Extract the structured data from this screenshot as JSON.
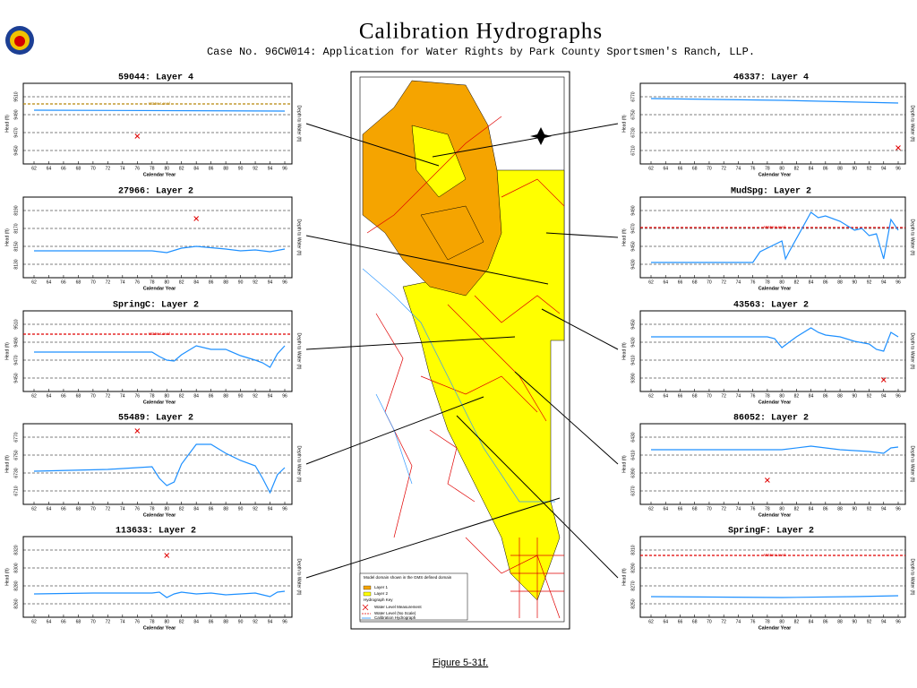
{
  "title": "Calibration Hydrographs",
  "subtitle": "Case No. 96CW014: Application for Water Rights by Park County Sportsmen's Ranch, LLP.",
  "caption": "Figure 5-31f.",
  "map": {
    "legend": [
      "Model domain shown in the GMS defined domain",
      "Layer 1",
      "Layer 2",
      "Hydrograph Key",
      "Water Level Measurement",
      "Water Level (No Scale)",
      "Calibration Hydrograph"
    ]
  },
  "chart_data": [
    {
      "type": "line",
      "title": "59044: Layer 4",
      "x_label": "Calendar Year",
      "y_label": "Head (ft)",
      "y2_label": "Depth to Water (ft)",
      "xlim": [
        62,
        96
      ],
      "xticks": [
        62,
        64,
        66,
        68,
        70,
        72,
        74,
        76,
        78,
        80,
        82,
        84,
        86,
        88,
        90,
        92,
        94,
        96
      ],
      "ylim": [
        9440,
        9520
      ],
      "yticks": [
        9450,
        9470,
        9490,
        9510
      ],
      "series": [
        {
          "color": "#1e90ff",
          "x": [
            62,
            96
          ],
          "values": [
            9495,
            9494
          ]
        }
      ],
      "measurements": {
        "color": "#e00000",
        "x": [
          76
        ],
        "values": [
          9466
        ]
      },
      "water_level": {
        "label": "Water Level",
        "value": 9502,
        "color": "#b8860b"
      }
    },
    {
      "type": "line",
      "title": "27966: Layer 2",
      "x_label": "Calendar Year",
      "y_label": "Head (ft)",
      "y2_label": "Depth to Water (ft)",
      "xlim": [
        62,
        96
      ],
      "xticks": [
        62,
        64,
        66,
        68,
        70,
        72,
        74,
        76,
        78,
        80,
        82,
        84,
        86,
        88,
        90,
        92,
        94,
        96
      ],
      "ylim": [
        8120,
        8200
      ],
      "yticks": [
        8130,
        8150,
        8170,
        8190
      ],
      "series": [
        {
          "color": "#1e90ff",
          "x": [
            62,
            70,
            78,
            80,
            82,
            84,
            88,
            90,
            92,
            94,
            96
          ],
          "values": [
            8145,
            8145,
            8145,
            8143,
            8148,
            8150,
            8147,
            8145,
            8146,
            8144,
            8147
          ]
        }
      ],
      "measurements": {
        "color": "#e00000",
        "x": [
          84
        ],
        "values": [
          8181
        ]
      }
    },
    {
      "type": "line",
      "title": "SpringC: Layer 2",
      "x_label": "Calendar Year",
      "y_label": "Head (ft)",
      "y2_label": "Depth to Water (ft)",
      "xlim": [
        62,
        96
      ],
      "xticks": [
        62,
        64,
        66,
        68,
        70,
        72,
        74,
        76,
        78,
        80,
        82,
        84,
        86,
        88,
        90,
        92,
        94,
        96
      ],
      "ylim": [
        9440,
        9520
      ],
      "yticks": [
        9450,
        9470,
        9490,
        9510
      ],
      "series": [
        {
          "color": "#1e90ff",
          "x": [
            62,
            78,
            79,
            80,
            81,
            82,
            84,
            86,
            88,
            90,
            92,
            93,
            94,
            95,
            96
          ],
          "values": [
            9479,
            9479,
            9474,
            9470,
            9469,
            9476,
            9486,
            9482,
            9482,
            9475,
            9470,
            9467,
            9462,
            9477,
            9486
          ]
        }
      ],
      "water_level": {
        "label": "Water Level",
        "value": 9499,
        "color": "#e00000"
      }
    },
    {
      "type": "line",
      "title": "55489: Layer 2",
      "x_label": "Calendar Year",
      "y_label": "Head (ft)",
      "y2_label": "Depth to Water (ft)",
      "xlim": [
        62,
        96
      ],
      "xticks": [
        62,
        64,
        66,
        68,
        70,
        72,
        74,
        76,
        78,
        80,
        82,
        84,
        86,
        88,
        90,
        92,
        94,
        96
      ],
      "ylim": [
        6700,
        6780
      ],
      "yticks": [
        6710,
        6730,
        6750,
        6770
      ],
      "series": [
        {
          "color": "#1e90ff",
          "x": [
            62,
            72,
            78,
            79,
            80,
            81,
            82,
            84,
            86,
            88,
            90,
            92,
            93,
            94,
            95,
            96
          ],
          "values": [
            6732,
            6734,
            6737,
            6724,
            6716,
            6720,
            6740,
            6762,
            6762,
            6752,
            6744,
            6738,
            6724,
            6708,
            6728,
            6736
          ]
        }
      ],
      "measurements": {
        "color": "#e00000",
        "x": [
          76
        ],
        "values": [
          6777
        ]
      }
    },
    {
      "type": "line",
      "title": "113633: Layer 2",
      "x_label": "Calendar Year",
      "y_label": "Head (ft)",
      "y2_label": "Depth to Water (ft)",
      "xlim": [
        62,
        96
      ],
      "xticks": [
        62,
        64,
        66,
        68,
        70,
        72,
        74,
        76,
        78,
        80,
        82,
        84,
        86,
        88,
        90,
        92,
        94,
        96
      ],
      "ylim": [
        8250,
        8330
      ],
      "yticks": [
        8260,
        8280,
        8300,
        8320
      ],
      "series": [
        {
          "color": "#1e90ff",
          "x": [
            62,
            70,
            78,
            79,
            80,
            81,
            82,
            84,
            86,
            88,
            90,
            92,
            93,
            94,
            95,
            96
          ],
          "values": [
            8271,
            8272,
            8272,
            8273,
            8267,
            8271,
            8273,
            8271,
            8272,
            8270,
            8271,
            8272,
            8270,
            8268,
            8273,
            8274
          ]
        }
      ],
      "measurements": {
        "color": "#e00000",
        "x": [
          80
        ],
        "values": [
          8314
        ]
      }
    },
    {
      "type": "line",
      "title": "46337: Layer 4",
      "x_label": "Calendar Year",
      "y_label": "Head (ft)",
      "y2_label": "Depth to Water (ft)",
      "xlim": [
        62,
        96
      ],
      "xticks": [
        62,
        64,
        66,
        68,
        70,
        72,
        74,
        76,
        78,
        80,
        82,
        84,
        86,
        88,
        90,
        92,
        94,
        96
      ],
      "ylim": [
        6700,
        6780
      ],
      "yticks": [
        6710,
        6730,
        6750,
        6770
      ],
      "series": [
        {
          "color": "#1e90ff",
          "x": [
            62,
            80,
            96
          ],
          "values": [
            6768,
            6766,
            6763
          ]
        }
      ],
      "measurements": {
        "color": "#e00000",
        "x": [
          96
        ],
        "values": [
          6713
        ]
      }
    },
    {
      "type": "line",
      "title": "MudSpg: Layer 2",
      "x_label": "Calendar Year",
      "y_label": "Head (ft)",
      "y2_label": "Depth to Water (ft)",
      "xlim": [
        62,
        96
      ],
      "xticks": [
        62,
        64,
        66,
        68,
        70,
        72,
        74,
        76,
        78,
        80,
        82,
        84,
        86,
        88,
        90,
        92,
        94,
        96
      ],
      "ylim": [
        9420,
        9500
      ],
      "yticks": [
        9430,
        9450,
        9470,
        9490
      ],
      "series": [
        {
          "color": "#1e90ff",
          "x": [
            62,
            76,
            77,
            80,
            80.5,
            81,
            84,
            85,
            86,
            88,
            90,
            91,
            92,
            93,
            94,
            95,
            96
          ],
          "values": [
            9432,
            9432,
            9444,
            9456,
            9436,
            9444,
            9488,
            9482,
            9484,
            9478,
            9468,
            9470,
            9462,
            9464,
            9436,
            9480,
            9468
          ]
        }
      ],
      "water_level": {
        "label": "Water Level",
        "value": 9471,
        "color": "#e00000"
      }
    },
    {
      "type": "line",
      "title": "43563: Layer 2",
      "x_label": "Calendar Year",
      "y_label": "Head (ft)",
      "y2_label": "Depth to Water (ft)",
      "xlim": [
        62,
        96
      ],
      "xticks": [
        62,
        64,
        66,
        68,
        70,
        72,
        74,
        76,
        78,
        80,
        82,
        84,
        86,
        88,
        90,
        92,
        94,
        96
      ],
      "ylim": [
        9380,
        9460
      ],
      "yticks": [
        9390,
        9410,
        9430,
        9450
      ],
      "series": [
        {
          "color": "#1e90ff",
          "x": [
            62,
            78,
            79,
            80,
            81,
            82,
            84,
            85,
            86,
            88,
            90,
            92,
            93,
            94,
            95,
            96
          ],
          "values": [
            9436,
            9436,
            9434,
            9424,
            9430,
            9436,
            9446,
            9441,
            9438,
            9436,
            9431,
            9428,
            9422,
            9420,
            9441,
            9436
          ]
        }
      ],
      "measurements": {
        "color": "#e00000",
        "x": [
          94
        ],
        "values": [
          9388
        ]
      }
    },
    {
      "type": "line",
      "title": "86052: Layer 2",
      "x_label": "Calendar Year",
      "y_label": "Head (ft)",
      "y2_label": "Depth to Water (ft)",
      "xlim": [
        62,
        96
      ],
      "xticks": [
        62,
        64,
        66,
        68,
        70,
        72,
        74,
        76,
        78,
        80,
        82,
        84,
        86,
        88,
        90,
        92,
        94,
        96
      ],
      "ylim": [
        6360,
        6440
      ],
      "yticks": [
        6370,
        6390,
        6410,
        6430
      ],
      "series": [
        {
          "color": "#1e90ff",
          "x": [
            62,
            80,
            84,
            86,
            88,
            90,
            92,
            94,
            95,
            96
          ],
          "values": [
            6416,
            6416,
            6420,
            6418,
            6416,
            6415,
            6414,
            6412,
            6418,
            6419
          ]
        }
      ],
      "measurements": {
        "color": "#e00000",
        "x": [
          78
        ],
        "values": [
          6382
        ]
      }
    },
    {
      "type": "line",
      "title": "SpringF: Layer 2",
      "x_label": "Calendar Year",
      "y_label": "Head (ft)",
      "y2_label": "Depth to Water (ft)",
      "xlim": [
        62,
        96
      ],
      "xticks": [
        62,
        64,
        66,
        68,
        70,
        72,
        74,
        76,
        78,
        80,
        82,
        84,
        86,
        88,
        90,
        92,
        94,
        96
      ],
      "ylim": [
        8240,
        8320
      ],
      "yticks": [
        8250,
        8270,
        8290,
        8310
      ],
      "series": [
        {
          "color": "#1e90ff",
          "x": [
            62,
            80,
            90,
            96
          ],
          "values": [
            8258,
            8257,
            8258,
            8259
          ]
        }
      ],
      "water_level": {
        "label": "Water Level",
        "value": 8304,
        "color": "#e00000"
      }
    }
  ]
}
